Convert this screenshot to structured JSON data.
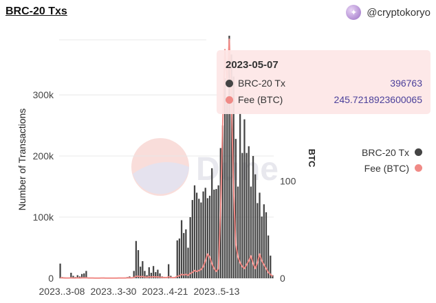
{
  "header": {
    "title": "BRC-20 Txs",
    "author": "@cryptokoryo"
  },
  "legend": {
    "items": [
      "BRC-20 Tx",
      "Fee (BTC)"
    ]
  },
  "tooltip": {
    "date": "2023-05-07",
    "rows": [
      {
        "label": "BRC-20 Tx",
        "value": "396763"
      },
      {
        "label": "Fee (BTC)",
        "value": "245.7218923600065"
      }
    ]
  },
  "colors": {
    "tx": "#444444",
    "fee": "#f08a86",
    "tooltip_bg": "#fde6e6",
    "value_text": "#4a3f9a"
  },
  "chart_data": {
    "type": "bar",
    "title": "BRC-20 Txs",
    "ylabel": "Number of Transactions",
    "y2label": "BTC",
    "ylim": [
      0,
      390000
    ],
    "y2lim": [
      0,
      245
    ],
    "y_ticks": [
      "0",
      "100k",
      "200k",
      "300k"
    ],
    "y2_ticks": [
      "0",
      "100"
    ],
    "x_ticks": [
      "2023..3-08",
      "2023..3-30",
      "2023..4-21",
      "2023..5-13"
    ],
    "series": [
      {
        "name": "BRC-20 Tx",
        "type": "bar",
        "values": [
          24000,
          2000,
          1500,
          800,
          600,
          9000,
          4000,
          2000,
          5000,
          3000,
          7000,
          8000,
          12000,
          1000,
          800,
          500,
          400,
          300,
          600,
          900,
          1200,
          700,
          500,
          400,
          600,
          300,
          500,
          900,
          1000,
          800,
          1200,
          2000,
          3000,
          1500,
          12000,
          61000,
          46000,
          19000,
          28000,
          12000,
          5000,
          18000,
          9000,
          20000,
          10000,
          14000,
          8000,
          3000,
          2000,
          1000,
          23000,
          4000,
          1000,
          2000,
          62000,
          65000,
          95000,
          74000,
          80000,
          50000,
          100000,
          128000,
          152000,
          140000,
          130000,
          124000,
          142000,
          148000,
          131000,
          135000,
          180000,
          145000,
          146000,
          152000,
          213000,
          250000,
          327000,
          286000,
          396763,
          366000,
          330000,
          228000,
          150000,
          270000,
          205000,
          260000,
          205000,
          216000,
          150000,
          200000,
          170000,
          123000,
          140000,
          101000,
          121000,
          108000,
          70000,
          37000,
          5000
        ]
      },
      {
        "name": "Fee (BTC)",
        "type": "line",
        "values": [
          0.5,
          0.4,
          0.3,
          0.3,
          0.3,
          0.4,
          0.3,
          0.3,
          0.4,
          0.3,
          0.4,
          0.4,
          0.5,
          0.3,
          0.3,
          0.3,
          0.2,
          0.2,
          0.2,
          0.3,
          0.3,
          0.2,
          0.2,
          0.2,
          0.2,
          0.2,
          0.2,
          0.3,
          0.3,
          0.3,
          0.3,
          0.4,
          0.5,
          0.4,
          0.8,
          2,
          2,
          1.5,
          1.8,
          1.2,
          1,
          1.5,
          1.2,
          1.6,
          1.3,
          1.4,
          1.1,
          0.9,
          0.8,
          0.7,
          1.5,
          0.8,
          0.6,
          0.8,
          2,
          2.5,
          4,
          3.5,
          4,
          3,
          5,
          6,
          8,
          7,
          8,
          9,
          12,
          18,
          25,
          22,
          15,
          10,
          7,
          10,
          70,
          160,
          235,
          200,
          245.7,
          180,
          90,
          35,
          22,
          16,
          12,
          10,
          14,
          18,
          23,
          15,
          10,
          16,
          25,
          18,
          14,
          10,
          6,
          4,
          2
        ]
      }
    ],
    "grid": true,
    "legend": "right"
  }
}
